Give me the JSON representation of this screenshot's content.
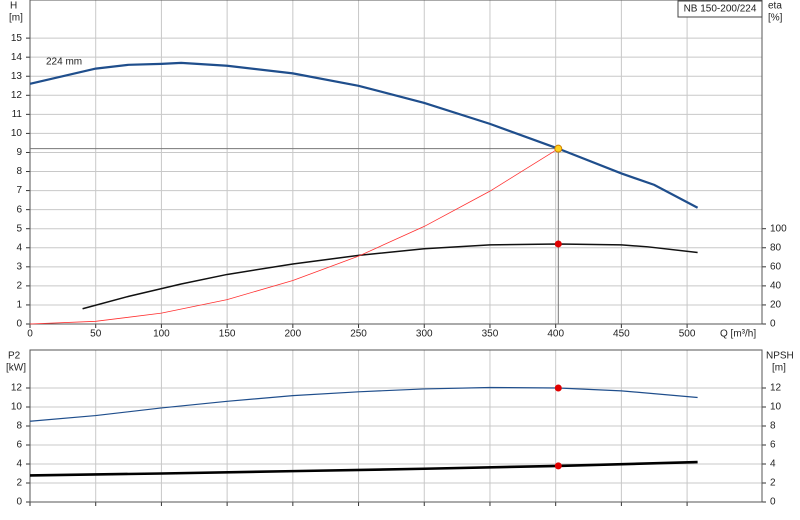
{
  "chart_data": [
    {
      "type": "line",
      "title": "NB 150-200/224",
      "annotation": "224 mm",
      "y_label": "H",
      "y_unit": "[m]",
      "y2_label": "eta",
      "y2_unit": "[%]",
      "x_label": "Q [m³/h]",
      "xlim": [
        0,
        557
      ],
      "xticks": [
        0,
        50,
        100,
        150,
        200,
        250,
        300,
        350,
        400,
        450,
        500
      ],
      "ylim": [
        0,
        17
      ],
      "yticks": [
        0,
        1,
        2,
        3,
        4,
        5,
        6,
        7,
        8,
        9,
        10,
        11,
        12,
        13,
        14,
        15
      ],
      "y2lim": [
        0,
        340
      ],
      "y2ticks": [
        0,
        20,
        40,
        60,
        80,
        100
      ],
      "grid": true,
      "show_xtick_labels": true,
      "series": [
        {
          "color": "#1f4e8c",
          "x": [
            0,
            50,
            75,
            100,
            115,
            150,
            200,
            250,
            300,
            350,
            402,
            450,
            475,
            508
          ],
          "values": [
            12.6,
            13.4,
            13.6,
            13.65,
            13.7,
            13.55,
            13.15,
            12.5,
            11.6,
            10.5,
            9.2,
            7.9,
            7.3,
            6.1
          ]
        },
        {
          "color": "#111111",
          "axis": "y2",
          "x": [
            40,
            75,
            115,
            150,
            200,
            250,
            300,
            350,
            402,
            450,
            470,
            508
          ],
          "values": [
            16,
            29,
            42,
            52,
            63,
            72,
            79,
            83,
            84,
            83,
            81,
            75
          ]
        },
        {
          "color": "#ff3030",
          "x": [
            0,
            50,
            100,
            150,
            200,
            250,
            300,
            350,
            402
          ],
          "values": [
            0,
            0.14,
            0.57,
            1.28,
            2.28,
            3.56,
            5.12,
            6.97,
            9.2
          ]
        }
      ],
      "markers": [
        {
          "x": 402,
          "y": 9.2,
          "color": "#ffd21f",
          "guides": true
        },
        {
          "x": 402,
          "y": 84,
          "axis": "y2",
          "color": "#e00000"
        }
      ]
    },
    {
      "type": "line",
      "y_label": "P2",
      "y_unit": "[kW]",
      "y2_label": "NPSH",
      "y2_unit": "[m]",
      "xlim": [
        0,
        557
      ],
      "xticks": [
        0,
        50,
        100,
        150,
        200,
        250,
        300,
        350,
        400,
        450,
        500
      ],
      "ylim": [
        0,
        16
      ],
      "yticks": [
        0,
        2,
        4,
        6,
        8,
        10,
        12
      ],
      "y2lim": [
        0,
        16
      ],
      "y2ticks": [
        0,
        2,
        4,
        6,
        8,
        10,
        12
      ],
      "grid": true,
      "show_xtick_labels": false,
      "series": [
        {
          "color": "#1f4e8c",
          "x": [
            0,
            50,
            100,
            150,
            200,
            250,
            300,
            350,
            402,
            450,
            508
          ],
          "values": [
            8.5,
            9.1,
            9.9,
            10.6,
            11.2,
            11.6,
            11.9,
            12.05,
            12.0,
            11.7,
            11.0
          ]
        },
        {
          "color": "#000000",
          "axis": "y2",
          "x": [
            0,
            100,
            200,
            300,
            402,
            508
          ],
          "values": [
            2.8,
            3.0,
            3.25,
            3.5,
            3.8,
            4.2
          ]
        }
      ],
      "markers": [
        {
          "x": 402,
          "y": 12.0,
          "color": "#e00000"
        },
        {
          "x": 402,
          "y": 3.8,
          "axis": "y2",
          "color": "#e00000"
        }
      ]
    }
  ]
}
